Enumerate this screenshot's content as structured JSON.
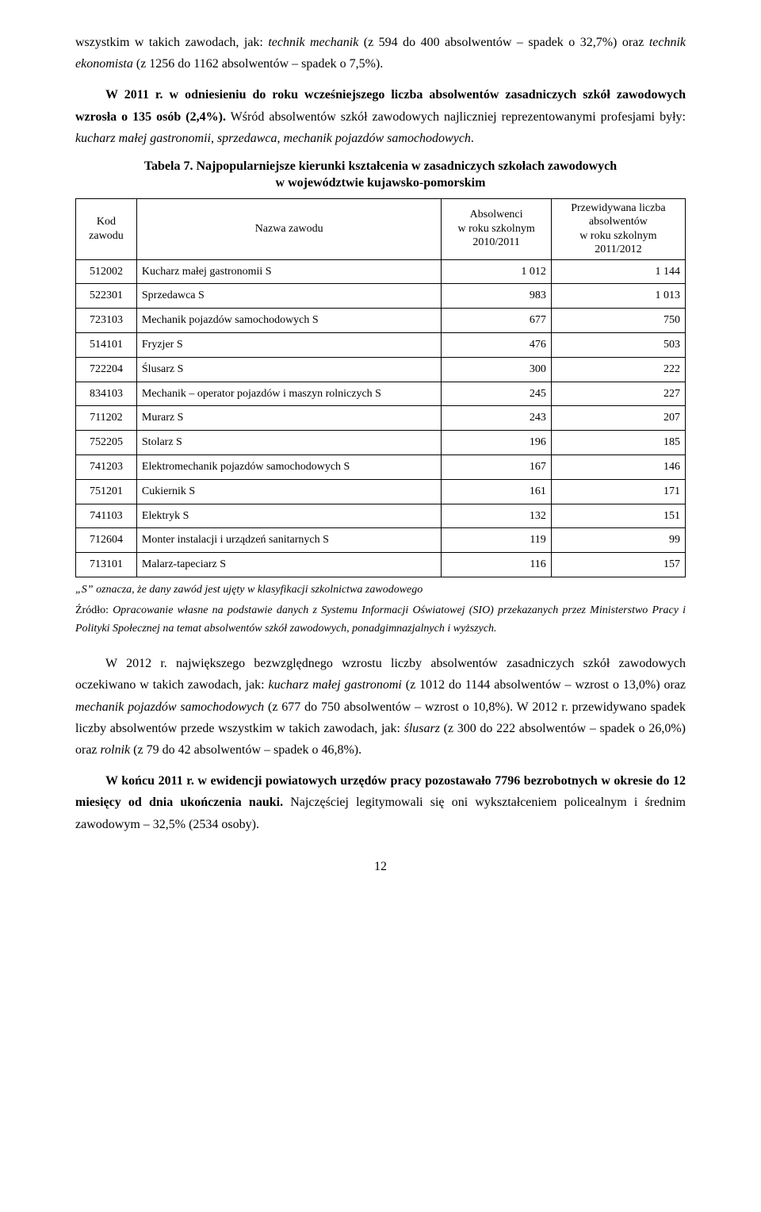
{
  "para1_parts": [
    {
      "t": "wszystkim w takich zawodach, jak: ",
      "i": false
    },
    {
      "t": "technik mechanik",
      "i": true
    },
    {
      "t": " (z 594 do 400 absolwentów – spadek o 32,7%) oraz ",
      "i": false
    },
    {
      "t": "technik ekonomista",
      "i": true
    },
    {
      "t": " (z 1256 do 1162 absolwentów – spadek o 7,5%).",
      "i": false
    }
  ],
  "para2_parts": [
    {
      "t": "W 2011 r. w odniesieniu do roku wcześniejszego liczba absolwentów zasadniczych szkół zawodowych wzrosła o 135 osób (2,4%).",
      "i": false,
      "b": true
    },
    {
      "t": " Wśród absolwentów szkół zawodowych najliczniej reprezentowanymi profesjami były: ",
      "i": false,
      "b": false
    },
    {
      "t": "kucharz małej gastronomii",
      "i": true,
      "b": false
    },
    {
      "t": ", ",
      "i": false,
      "b": false
    },
    {
      "t": "sprzedawca",
      "i": true,
      "b": false
    },
    {
      "t": ", ",
      "i": false,
      "b": false
    },
    {
      "t": "mechanik pojazdów samochodowych",
      "i": true,
      "b": false
    },
    {
      "t": ".",
      "i": false,
      "b": false
    }
  ],
  "table_caption_line1": "Tabela 7. Najpopularniejsze kierunki kształcenia w zasadniczych szkołach zawodowych",
  "table_caption_line2": "w województwie kujawsko-pomorskim",
  "table": {
    "header": {
      "c0": "Kod\nzawodu",
      "c1": "Nazwa zawodu",
      "c2": "Absolwenci\nw roku szkolnym\n2010/2011",
      "c3": "Przewidywana liczba\nabsolwentów\nw roku szkolnym\n2011/2012"
    },
    "col_widths": [
      "10%",
      "50%",
      "18%",
      "22%"
    ],
    "rows": [
      {
        "code": "512002",
        "name": "Kucharz małej gastronomii S",
        "v1": "1 012",
        "v2": "1 144"
      },
      {
        "code": "522301",
        "name": "Sprzedawca S",
        "v1": "983",
        "v2": "1 013"
      },
      {
        "code": "723103",
        "name": "Mechanik pojazdów samochodowych S",
        "v1": "677",
        "v2": "750"
      },
      {
        "code": "514101",
        "name": "Fryzjer S",
        "v1": "476",
        "v2": "503"
      },
      {
        "code": "722204",
        "name": "Ślusarz S",
        "v1": "300",
        "v2": "222"
      },
      {
        "code": "834103",
        "name": "Mechanik – operator pojazdów i maszyn rolniczych S",
        "v1": "245",
        "v2": "227"
      },
      {
        "code": "711202",
        "name": "Murarz S",
        "v1": "243",
        "v2": "207"
      },
      {
        "code": "752205",
        "name": "Stolarz S",
        "v1": "196",
        "v2": "185"
      },
      {
        "code": "741203",
        "name": "Elektromechanik pojazdów samochodowych S",
        "v1": "167",
        "v2": "146"
      },
      {
        "code": "751201",
        "name": "Cukiernik S",
        "v1": "161",
        "v2": "171"
      },
      {
        "code": "741103",
        "name": "Elektryk S",
        "v1": "132",
        "v2": "151"
      },
      {
        "code": "712604",
        "name": "Monter instalacji i urządzeń sanitarnych S",
        "v1": "119",
        "v2": "99"
      },
      {
        "code": "713101",
        "name": "Malarz-tapeciarz S",
        "v1": "116",
        "v2": "157"
      }
    ]
  },
  "footnote": "„S” oznacza, że dany zawód jest ujęty w klasyfikacji szkolnictwa zawodowego",
  "source_parts": [
    {
      "t": "Źródło: ",
      "i": false
    },
    {
      "t": "Opracowanie własne na podstawie danych z Systemu Informacji Oświatowej (SIO) przekazanych przez Ministerstwo Pracy i Polityki Społecznej na temat absolwentów szkół zawodowych, ponadgimnazjalnych i wyższych.",
      "i": true
    }
  ],
  "para3_parts": [
    {
      "t": "W 2012 r. największego bezwzględnego wzrostu liczby absolwentów zasadniczych szkół zawodowych oczekiwano w takich zawodach, jak: ",
      "i": false
    },
    {
      "t": "kucharz małej gastronomi",
      "i": true
    },
    {
      "t": " (z 1012 do 1144 absolwentów – wzrost o 13,0%) oraz ",
      "i": false
    },
    {
      "t": "mechanik pojazdów samochodowych",
      "i": true
    },
    {
      "t": " (z 677 do 750 absolwentów – wzrost o 10,8%). W 2012 r. przewidywano spadek liczby absolwentów przede wszystkim w takich zawodach, jak: ",
      "i": false
    },
    {
      "t": "ślusarz",
      "i": true
    },
    {
      "t": " (z 300 do 222 absolwentów – spadek o 26,0%) oraz ",
      "i": false
    },
    {
      "t": "rolnik",
      "i": true
    },
    {
      "t": " (z 79 do 42 absolwentów – spadek o 46,8%).",
      "i": false
    }
  ],
  "para4_parts": [
    {
      "t": "W końcu 2011 r. w ewidencji powiatowych urzędów pracy pozostawało 7796 bezrobotnych w okresie do 12 miesięcy od dnia ukończenia nauki.",
      "i": false,
      "b": true
    },
    {
      "t": " Najczęściej legitymowali się oni wykształceniem policealnym i średnim zawodowym – 32,5% (2534 osoby).",
      "i": false,
      "b": false
    }
  ],
  "page_number": "12"
}
